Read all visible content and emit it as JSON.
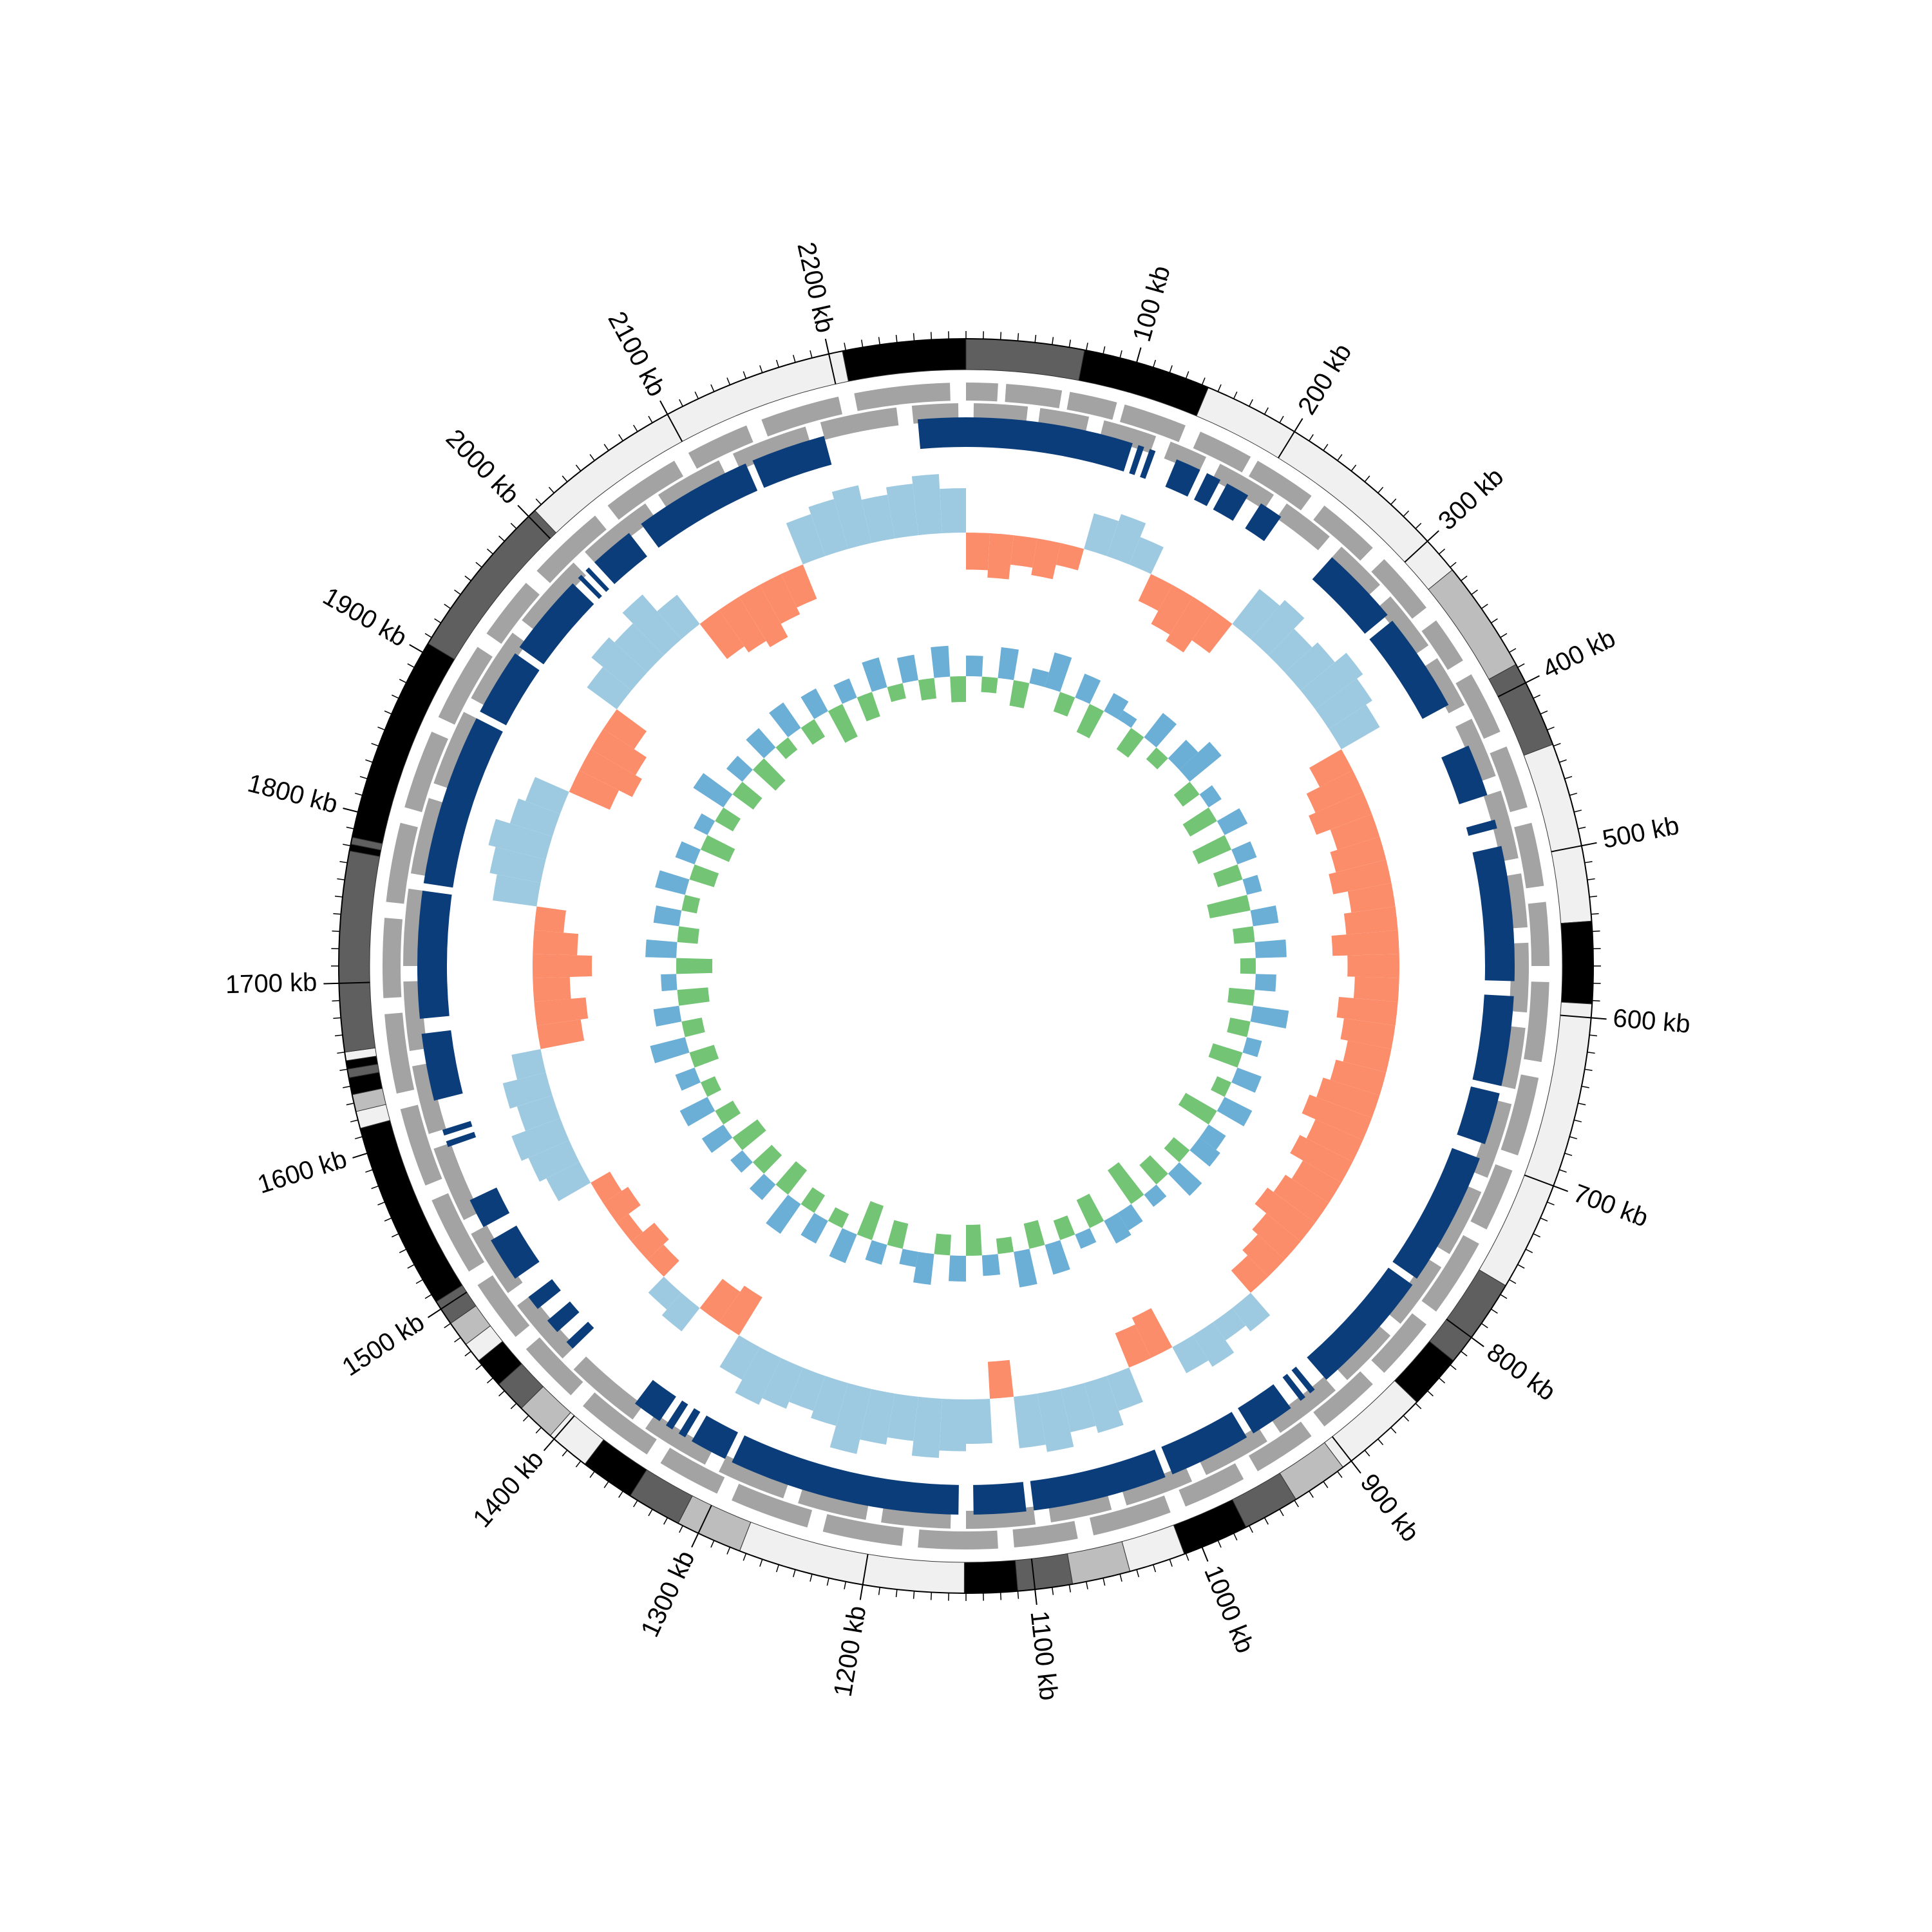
{
  "chart_data": {
    "type": "circular",
    "xlim": [
      0,
      2280
    ],
    "xticks": [
      {
        "value": 100,
        "label": "100 kb"
      },
      {
        "value": 200,
        "label": "200 kb"
      },
      {
        "value": 300,
        "label": "300 kb"
      },
      {
        "value": 400,
        "label": "400 kb"
      },
      {
        "value": 500,
        "label": "500 kb"
      },
      {
        "value": 600,
        "label": "600 kb"
      },
      {
        "value": 700,
        "label": "700 kb"
      },
      {
        "value": 800,
        "label": "800 kb"
      },
      {
        "value": 900,
        "label": "900 kb"
      },
      {
        "value": 1000,
        "label": "1000 kb"
      },
      {
        "value": 1100,
        "label": "1100 kb"
      },
      {
        "value": 1200,
        "label": "1200 kb"
      },
      {
        "value": 1300,
        "label": "1300 kb"
      },
      {
        "value": 1400,
        "label": "1400 kb"
      },
      {
        "value": 1500,
        "label": "1500 kb"
      },
      {
        "value": 1600,
        "label": "1600 kb"
      },
      {
        "value": 1700,
        "label": "1700 kb"
      },
      {
        "value": 1800,
        "label": "1800 kb"
      },
      {
        "value": 1900,
        "label": "1900 kb"
      },
      {
        "value": 2000,
        "label": "2000 kb"
      },
      {
        "value": 2100,
        "label": "2100 kb"
      },
      {
        "value": 2200,
        "label": "2200 kb"
      }
    ],
    "minor_step": 10,
    "bands": [
      {
        "start": 0,
        "end": 69,
        "color": "#5f5f5f"
      },
      {
        "start": 69,
        "end": 144,
        "color": "#000000"
      },
      {
        "start": 144,
        "end": 322,
        "color": "#f0f0f0"
      },
      {
        "start": 322,
        "end": 388,
        "color": "#bdbdbd"
      },
      {
        "start": 388,
        "end": 439,
        "color": "#5f5f5f"
      },
      {
        "start": 439,
        "end": 544,
        "color": "#f0f0f0"
      },
      {
        "start": 544,
        "end": 592,
        "color": "#000000"
      },
      {
        "start": 592,
        "end": 764,
        "color": "#f0f0f0"
      },
      {
        "start": 764,
        "end": 817,
        "color": "#5f5f5f"
      },
      {
        "start": 817,
        "end": 849,
        "color": "#000000"
      },
      {
        "start": 849,
        "end": 906,
        "color": "#f0f0f0"
      },
      {
        "start": 906,
        "end": 939,
        "color": "#bdbdbd"
      },
      {
        "start": 939,
        "end": 972,
        "color": "#5f5f5f"
      },
      {
        "start": 972,
        "end": 1011,
        "color": "#000000"
      },
      {
        "start": 1011,
        "end": 1044,
        "color": "#f0f0f0"
      },
      {
        "start": 1044,
        "end": 1078,
        "color": "#bdbdbd"
      },
      {
        "start": 1078,
        "end": 1110,
        "color": "#5f5f5f"
      },
      {
        "start": 1110,
        "end": 1141,
        "color": "#000000"
      },
      {
        "start": 1141,
        "end": 1274,
        "color": "#f0f0f0"
      },
      {
        "start": 1274,
        "end": 1313,
        "color": "#bdbdbd"
      },
      {
        "start": 1313,
        "end": 1345,
        "color": "#5f5f5f"
      },
      {
        "start": 1345,
        "end": 1377,
        "color": "#000000"
      },
      {
        "start": 1377,
        "end": 1403,
        "color": "#f0f0f0"
      },
      {
        "start": 1403,
        "end": 1426,
        "color": "#bdbdbd"
      },
      {
        "start": 1426,
        "end": 1445,
        "color": "#5f5f5f"
      },
      {
        "start": 1445,
        "end": 1463,
        "color": "#000000"
      },
      {
        "start": 1463,
        "end": 1475,
        "color": "#f0f0f0"
      },
      {
        "start": 1475,
        "end": 1490,
        "color": "#bdbdbd"
      },
      {
        "start": 1490,
        "end": 1505,
        "color": "#5f5f5f"
      },
      {
        "start": 1505,
        "end": 1615,
        "color": "#000000"
      },
      {
        "start": 1615,
        "end": 1625,
        "color": "#f0f0f0"
      },
      {
        "start": 1625,
        "end": 1635,
        "color": "#bdbdbd"
      },
      {
        "start": 1635,
        "end": 1645,
        "color": "#000000"
      },
      {
        "start": 1645,
        "end": 1650,
        "color": "#5f5f5f"
      },
      {
        "start": 1650,
        "end": 1655,
        "color": "#000000"
      },
      {
        "start": 1655,
        "end": 1660,
        "color": "#f0f0f0"
      },
      {
        "start": 1660,
        "end": 1777,
        "color": "#5f5f5f"
      },
      {
        "start": 1777,
        "end": 1781,
        "color": "#000000"
      },
      {
        "start": 1781,
        "end": 1785,
        "color": "#5f5f5f"
      },
      {
        "start": 1785,
        "end": 1906,
        "color": "#000000"
      },
      {
        "start": 1906,
        "end": 2005,
        "color": "#5f5f5f"
      },
      {
        "start": 2005,
        "end": 2208,
        "color": "#f0f0f0"
      },
      {
        "start": 2208,
        "end": 2280,
        "color": "#000000"
      }
    ],
    "gene_color": "#a3a3a3",
    "genes_plus": [
      [
        0,
        20
      ],
      [
        25,
        60
      ],
      [
        65,
        95
      ],
      [
        100,
        140
      ],
      [
        150,
        185
      ],
      [
        190,
        230
      ],
      [
        240,
        280
      ],
      [
        290,
        330
      ],
      [
        340,
        370
      ],
      [
        380,
        420
      ],
      [
        430,
        470
      ],
      [
        480,
        520
      ],
      [
        530,
        570
      ],
      [
        580,
        630
      ],
      [
        640,
        690
      ],
      [
        700,
        740
      ],
      [
        750,
        800
      ],
      [
        810,
        850
      ],
      [
        860,
        900
      ],
      [
        910,
        950
      ],
      [
        960,
        1000
      ],
      [
        1010,
        1060
      ],
      [
        1070,
        1110
      ],
      [
        1120,
        1170
      ],
      [
        1180,
        1230
      ],
      [
        1240,
        1290
      ],
      [
        1300,
        1340
      ],
      [
        1350,
        1400
      ],
      [
        1410,
        1450
      ],
      [
        1460,
        1500
      ],
      [
        1510,
        1560
      ],
      [
        1570,
        1620
      ],
      [
        1630,
        1680
      ],
      [
        1690,
        1740
      ],
      [
        1750,
        1800
      ],
      [
        1810,
        1860
      ],
      [
        1870,
        1920
      ],
      [
        1930,
        1970
      ],
      [
        1980,
        2030
      ],
      [
        2040,
        2090
      ],
      [
        2100,
        2140
      ],
      [
        2150,
        2200
      ],
      [
        2210,
        2270
      ]
    ],
    "genes_minus": [
      [
        5,
        40
      ],
      [
        48,
        80
      ],
      [
        90,
        125
      ],
      [
        135,
        160
      ],
      [
        170,
        210
      ],
      [
        220,
        255
      ],
      [
        265,
        300
      ],
      [
        310,
        350
      ],
      [
        360,
        395
      ],
      [
        405,
        445
      ],
      [
        455,
        500
      ],
      [
        510,
        545
      ],
      [
        555,
        600
      ],
      [
        610,
        650
      ],
      [
        660,
        710
      ],
      [
        720,
        765
      ],
      [
        775,
        820
      ],
      [
        830,
        870
      ],
      [
        880,
        925
      ],
      [
        935,
        980
      ],
      [
        990,
        1035
      ],
      [
        1045,
        1085
      ],
      [
        1095,
        1140
      ],
      [
        1150,
        1195
      ],
      [
        1205,
        1250
      ],
      [
        1260,
        1305
      ],
      [
        1315,
        1360
      ],
      [
        1370,
        1420
      ],
      [
        1430,
        1475
      ],
      [
        1485,
        1530
      ],
      [
        1540,
        1590
      ],
      [
        1600,
        1645
      ],
      [
        1655,
        1700
      ],
      [
        1710,
        1760
      ],
      [
        1770,
        1820
      ],
      [
        1830,
        1880
      ],
      [
        1890,
        1940
      ],
      [
        1950,
        2000
      ],
      [
        2010,
        2060
      ],
      [
        2070,
        2115
      ],
      [
        2125,
        2175
      ],
      [
        2185,
        2235
      ],
      [
        2245,
        2275
      ]
    ],
    "block_color": "#0b3d7a",
    "blocks": [
      [
        2248,
        2280
      ],
      [
        0,
        112
      ],
      [
        116,
        120
      ],
      [
        124,
        128
      ],
      [
        143,
        160
      ],
      [
        165,
        175
      ],
      [
        180,
        196
      ],
      [
        206,
        222
      ],
      [
        265,
        318
      ],
      [
        323,
        390
      ],
      [
        420,
        455
      ],
      [
        472,
        478
      ],
      [
        490,
        580
      ],
      [
        590,
        650
      ],
      [
        655,
        690
      ],
      [
        700,
        790
      ],
      [
        795,
        880
      ],
      [
        890,
        894
      ],
      [
        898,
        902
      ],
      [
        910,
        940
      ],
      [
        945,
        1000
      ],
      [
        1005,
        1095
      ],
      [
        1100,
        1135
      ],
      [
        1145,
        1300
      ],
      [
        1305,
        1330
      ],
      [
        1335,
        1340
      ],
      [
        1345,
        1350
      ],
      [
        1355,
        1375
      ],
      [
        1430,
        1436
      ],
      [
        1445,
        1455
      ],
      [
        1465,
        1475
      ],
      [
        1490,
        1520
      ],
      [
        1530,
        1550
      ],
      [
        1588,
        1592
      ],
      [
        1596,
        1600
      ],
      [
        1620,
        1665
      ],
      [
        1675,
        1760
      ],
      [
        1765,
        1880
      ],
      [
        1885,
        1930
      ],
      [
        1935,
        1990
      ],
      [
        1995,
        1998
      ],
      [
        2002,
        2005
      ],
      [
        2010,
        2040
      ],
      [
        2050,
        2130
      ],
      [
        2135,
        2185
      ]
    ],
    "window": 20,
    "gc_skew": {
      "ylim": [
        -1,
        1
      ],
      "positive_color": "#9ecae1",
      "negative_color": "#fc8d6a",
      "values": [
        -0.5,
        -0.6,
        -0.4,
        -0.5,
        -0.3,
        0.5,
        0.6,
        0.4,
        -0.4,
        -0.6,
        -0.7,
        -0.5,
        0.6,
        0.7,
        0.5,
        0.6,
        0.8,
        0.7,
        0.6,
        -0.5,
        -0.7,
        -0.8,
        -0.6,
        -0.7,
        -0.8,
        -0.6,
        -0.7,
        -0.9,
        -0.7,
        -0.6,
        -0.8,
        -0.7,
        -0.6,
        -0.7,
        -0.8,
        -0.9,
        -0.7,
        -0.8,
        -0.6,
        -0.7,
        -0.8,
        -0.6,
        -0.5,
        -0.4,
        0.4,
        0.3,
        0.5,
        0.4,
        -0.6,
        -0.5,
        0.5,
        0.7,
        0.6,
        0.8,
        0.7,
        -0.5,
        0.6,
        0.7,
        0.8,
        0.6,
        0.7,
        0.9,
        0.6,
        0.5,
        0.6,
        0.7,
        0.5,
        -0.6,
        -0.5,
        0.4,
        0.3,
        -0.3,
        -0.4,
        -0.2,
        -0.4,
        -0.3,
        0.5,
        0.6,
        0.7,
        0.5,
        0.6,
        0.4,
        -0.6,
        -0.7,
        -0.5,
        -0.8,
        -0.6,
        -0.4,
        0.6,
        0.7,
        0.8,
        0.6,
        0.5,
        -0.6,
        -0.8,
        -0.7,
        -0.5,
        0.5,
        0.7,
        0.6,
        0.8,
        0.5,
        -0.6,
        -0.7,
        -0.8,
        -0.6,
        -0.5,
        0.6,
        0.7,
        0.8,
        0.6,
        0.7,
        0.8,
        0.6
      ]
    },
    "gc_content": {
      "ylim": [
        -1,
        1
      ],
      "positive_color": "#6baed6",
      "negative_color": "#74c476",
      "values": [
        0.4,
        -0.3,
        0.6,
        -0.5,
        0.3,
        0.7,
        -0.4,
        0.5,
        -0.6,
        0.4,
        0.2,
        -0.5,
        0.6,
        -0.3,
        0.5,
        0.8,
        -0.4,
        0.3,
        -0.6,
        0.5,
        -0.7,
        0.4,
        -0.5,
        0.3,
        -0.8,
        0.5,
        -0.4,
        0.6,
        -0.3,
        0.4,
        -0.5,
        0.7,
        -0.4,
        0.3,
        -0.6,
        0.5,
        -0.3,
        0.6,
        -0.7,
        0.4,
        0.5,
        -0.4,
        0.6,
        -0.5,
        0.3,
        -0.8,
        0.4,
        0.5,
        -0.6,
        0.3,
        -0.4,
        0.6,
        -0.5,
        0.7,
        -0.3,
        0.4,
        -0.6,
        0.5,
        -0.4,
        0.6,
        0.3,
        -0.5,
        0.4,
        -0.7,
        0.6,
        -0.3,
        0.5,
        -0.4,
        0.7,
        -0.6,
        0.4,
        -0.5,
        0.3,
        -0.6,
        0.5,
        -0.4,
        0.6,
        -0.3,
        0.4,
        -0.5,
        0.7,
        -0.4,
        0.5,
        -0.6,
        0.3,
        -0.7,
        0.6,
        -0.4,
        0.5,
        -0.3,
        0.6,
        -0.5,
        0.4,
        -0.6,
        0.3,
        -0.4,
        0.7,
        -0.5,
        0.4,
        -0.6,
        0.5,
        -0.3,
        0.6,
        -0.4,
        0.5,
        -0.7,
        0.4,
        -0.5,
        0.6,
        -0.3,
        0.5,
        -0.4,
        0.6,
        -0.5
      ]
    }
  }
}
